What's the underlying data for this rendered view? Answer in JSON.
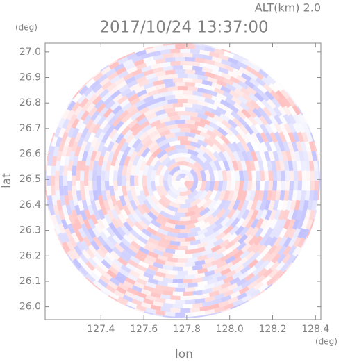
{
  "chart_data": {
    "type": "radar-ppi",
    "title": "2017/10/24 13:37:00",
    "subtitle": "ALT(km) 2.0",
    "x_label": "lon",
    "y_label": "lat",
    "x_unit": "(deg)",
    "y_unit": "(deg)",
    "xlim": [
      127.14,
      128.425
    ],
    "ylim": [
      25.95,
      27.035
    ],
    "xticks": [
      127.4,
      127.6,
      127.8,
      {
        "value": 128.0,
        "label": "128.0"
      },
      128.2,
      128.4
    ],
    "yticks": [
      {
        "value": 26.0,
        "label": "26.0"
      },
      26.1,
      26.2,
      26.3,
      26.4,
      26.5,
      26.6,
      26.7,
      26.8,
      26.9,
      {
        "value": 27.0,
        "label": "27.0"
      }
    ]
  }
}
